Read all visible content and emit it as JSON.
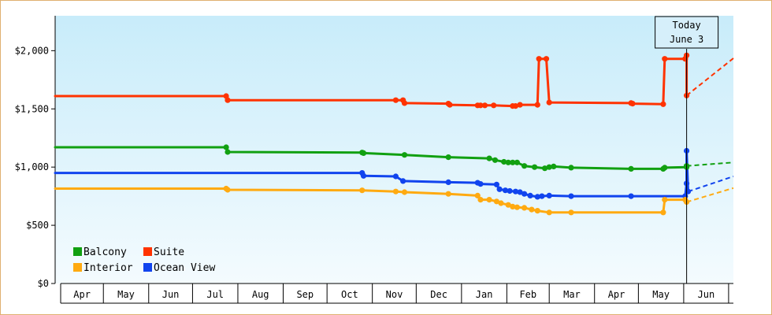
{
  "chart_data": {
    "type": "line",
    "title": "",
    "xlabel": "",
    "ylabel": "",
    "ylim": [
      0,
      2300
    ],
    "y_ticks": [
      {
        "value": 0,
        "label": "$0"
      },
      {
        "value": 500,
        "label": "$500"
      },
      {
        "value": 1000,
        "label": "$1,000"
      },
      {
        "value": 1500,
        "label": "$1,500"
      },
      {
        "value": 2000,
        "label": "$2,000"
      }
    ],
    "x_range": [
      "2023-03-29",
      "2024-07-05"
    ],
    "months": [
      {
        "label": "Apr",
        "start": "2023-04-01"
      },
      {
        "label": "May",
        "start": "2023-05-01"
      },
      {
        "label": "Jun",
        "start": "2023-06-01"
      },
      {
        "label": "Jul",
        "start": "2023-07-01"
      },
      {
        "label": "Aug",
        "start": "2023-08-01"
      },
      {
        "label": "Sep",
        "start": "2023-09-01"
      },
      {
        "label": "Oct",
        "start": "2023-10-01"
      },
      {
        "label": "Nov",
        "start": "2023-11-01"
      },
      {
        "label": "Dec",
        "start": "2023-12-01"
      },
      {
        "label": "Jan",
        "start": "2024-01-01"
      },
      {
        "label": "Feb",
        "start": "2024-02-01"
      },
      {
        "label": "Mar",
        "start": "2024-03-01"
      },
      {
        "label": "Apr",
        "start": "2024-04-01"
      },
      {
        "label": "May",
        "start": "2024-05-01"
      },
      {
        "label": "Jun",
        "start": "2024-06-01"
      }
    ],
    "grid": false,
    "legend_position": "bottom-left",
    "today": {
      "date": "2024-06-03",
      "label_line1": "Today",
      "label_line2": "June 3"
    },
    "series": [
      {
        "name": "Suite",
        "color": "#ff3300",
        "points": [
          [
            "2023-03-29",
            1610
          ],
          [
            "2023-07-24",
            1610
          ],
          [
            "2023-07-25",
            1575
          ],
          [
            "2023-11-17",
            1575
          ],
          [
            "2023-11-22",
            1575
          ],
          [
            "2023-11-23",
            1550
          ],
          [
            "2023-12-23",
            1545
          ],
          [
            "2023-12-24",
            1535
          ],
          [
            "2024-01-12",
            1530
          ],
          [
            "2024-01-14",
            1530
          ],
          [
            "2024-01-17",
            1530
          ],
          [
            "2024-01-23",
            1530
          ],
          [
            "2024-02-05",
            1525
          ],
          [
            "2024-02-07",
            1525
          ],
          [
            "2024-02-10",
            1535
          ],
          [
            "2024-02-22",
            1535
          ],
          [
            "2024-02-23",
            1930
          ],
          [
            "2024-02-28",
            1930
          ],
          [
            "2024-03-01",
            1555
          ],
          [
            "2024-04-26",
            1550
          ],
          [
            "2024-04-27",
            1545
          ],
          [
            "2024-05-18",
            1540
          ],
          [
            "2024-05-19",
            1930
          ],
          [
            "2024-06-02",
            1930
          ],
          [
            "2024-06-03",
            1960
          ],
          [
            "2024-06-03",
            1615
          ]
        ],
        "projection": [
          [
            "2024-06-03",
            1615
          ],
          [
            "2024-07-05",
            1935
          ]
        ]
      },
      {
        "name": "Balcony",
        "color": "#11a011",
        "points": [
          [
            "2023-03-29",
            1170
          ],
          [
            "2023-07-24",
            1170
          ],
          [
            "2023-07-25",
            1130
          ],
          [
            "2023-10-25",
            1125
          ],
          [
            "2023-10-26",
            1120
          ],
          [
            "2023-11-23",
            1105
          ],
          [
            "2023-12-23",
            1085
          ],
          [
            "2024-01-20",
            1075
          ],
          [
            "2024-01-24",
            1060
          ],
          [
            "2024-01-30",
            1045
          ],
          [
            "2024-02-02",
            1040
          ],
          [
            "2024-02-05",
            1040
          ],
          [
            "2024-02-08",
            1040
          ],
          [
            "2024-02-13",
            1010
          ],
          [
            "2024-02-20",
            1000
          ],
          [
            "2024-02-27",
            990
          ],
          [
            "2024-03-01",
            1000
          ],
          [
            "2024-03-04",
            1005
          ],
          [
            "2024-03-16",
            995
          ],
          [
            "2024-04-26",
            985
          ],
          [
            "2024-05-18",
            985
          ],
          [
            "2024-05-19",
            995
          ],
          [
            "2024-06-03",
            1000
          ],
          [
            "2024-06-03",
            1010
          ]
        ],
        "projection": [
          [
            "2024-06-03",
            1010
          ],
          [
            "2024-07-05",
            1040
          ]
        ]
      },
      {
        "name": "Ocean View",
        "color": "#1144ee",
        "points": [
          [
            "2023-03-29",
            950
          ],
          [
            "2023-10-25",
            950
          ],
          [
            "2023-10-26",
            925
          ],
          [
            "2023-11-17",
            920
          ],
          [
            "2023-11-22",
            880
          ],
          [
            "2023-12-23",
            870
          ],
          [
            "2024-01-12",
            865
          ],
          [
            "2024-01-14",
            855
          ],
          [
            "2024-01-25",
            850
          ],
          [
            "2024-01-27",
            810
          ],
          [
            "2024-01-31",
            800
          ],
          [
            "2024-02-03",
            795
          ],
          [
            "2024-02-07",
            790
          ],
          [
            "2024-02-10",
            785
          ],
          [
            "2024-02-13",
            770
          ],
          [
            "2024-02-17",
            755
          ],
          [
            "2024-02-22",
            745
          ],
          [
            "2024-02-25",
            750
          ],
          [
            "2024-03-01",
            755
          ],
          [
            "2024-03-16",
            750
          ],
          [
            "2024-04-26",
            750
          ],
          [
            "2024-06-02",
            750
          ],
          [
            "2024-06-03",
            860
          ],
          [
            "2024-06-03",
            1140
          ],
          [
            "2024-06-04",
            790
          ]
        ],
        "projection": [
          [
            "2024-06-04",
            790
          ],
          [
            "2024-07-05",
            920
          ]
        ]
      },
      {
        "name": "Interior",
        "color": "#ffaa11",
        "points": [
          [
            "2023-03-29",
            815
          ],
          [
            "2023-07-24",
            815
          ],
          [
            "2023-07-25",
            805
          ],
          [
            "2023-10-25",
            800
          ],
          [
            "2023-11-17",
            790
          ],
          [
            "2023-11-23",
            785
          ],
          [
            "2023-12-23",
            770
          ],
          [
            "2024-01-12",
            755
          ],
          [
            "2024-01-14",
            720
          ],
          [
            "2024-01-20",
            720
          ],
          [
            "2024-01-25",
            705
          ],
          [
            "2024-01-28",
            690
          ],
          [
            "2024-02-02",
            675
          ],
          [
            "2024-02-05",
            660
          ],
          [
            "2024-02-08",
            655
          ],
          [
            "2024-02-13",
            650
          ],
          [
            "2024-02-18",
            635
          ],
          [
            "2024-02-22",
            625
          ],
          [
            "2024-03-01",
            610
          ],
          [
            "2024-03-16",
            610
          ],
          [
            "2024-05-18",
            610
          ],
          [
            "2024-05-19",
            720
          ],
          [
            "2024-06-02",
            720
          ],
          [
            "2024-06-03",
            700
          ]
        ],
        "projection": [
          [
            "2024-06-03",
            700
          ],
          [
            "2024-07-05",
            820
          ]
        ]
      }
    ],
    "legend": [
      {
        "name": "Balcony",
        "color": "#11a011"
      },
      {
        "name": "Suite",
        "color": "#ff3300"
      },
      {
        "name": "Interior",
        "color": "#ffaa11"
      },
      {
        "name": "Ocean View",
        "color": "#1144ee"
      }
    ]
  }
}
